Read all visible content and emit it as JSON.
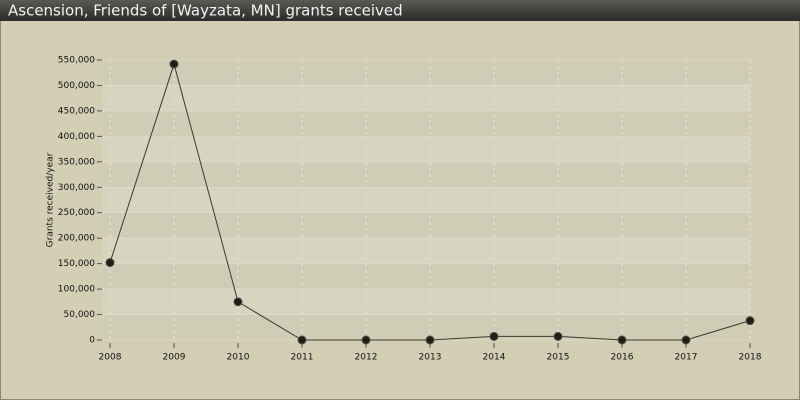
{
  "chart_data": {
    "type": "line",
    "title": "Ascension, Friends of [Wayzata, MN] grants received",
    "y_label": "Grants received/year",
    "categories": [
      "2008",
      "2009",
      "2010",
      "2011",
      "2012",
      "2013",
      "2014",
      "2015",
      "2016",
      "2017",
      "2018"
    ],
    "series": [
      {
        "color": "#3a3a2a",
        "values": [
          152000,
          542000,
          75000,
          0,
          0,
          0,
          7000,
          7000,
          0,
          0,
          38000
        ]
      }
    ],
    "ylim": [
      0,
      550000
    ],
    "yticks": [
      0,
      {
        "value": 50000,
        "label": "50,000"
      },
      {
        "value": 100000,
        "label": "100,000"
      },
      {
        "value": 150000,
        "label": "150,000"
      },
      {
        "value": 200000,
        "label": "200,000"
      },
      {
        "value": 250000,
        "label": "250,000"
      },
      {
        "value": 300000,
        "label": "300,000"
      },
      {
        "value": 350000,
        "label": "350,000"
      },
      {
        "value": 400000,
        "label": "400,000"
      },
      {
        "value": 450000,
        "label": "450,000"
      },
      {
        "value": 500000,
        "label": "500,000"
      },
      {
        "value": 550000,
        "label": "550,000"
      }
    ],
    "grid": true
  }
}
